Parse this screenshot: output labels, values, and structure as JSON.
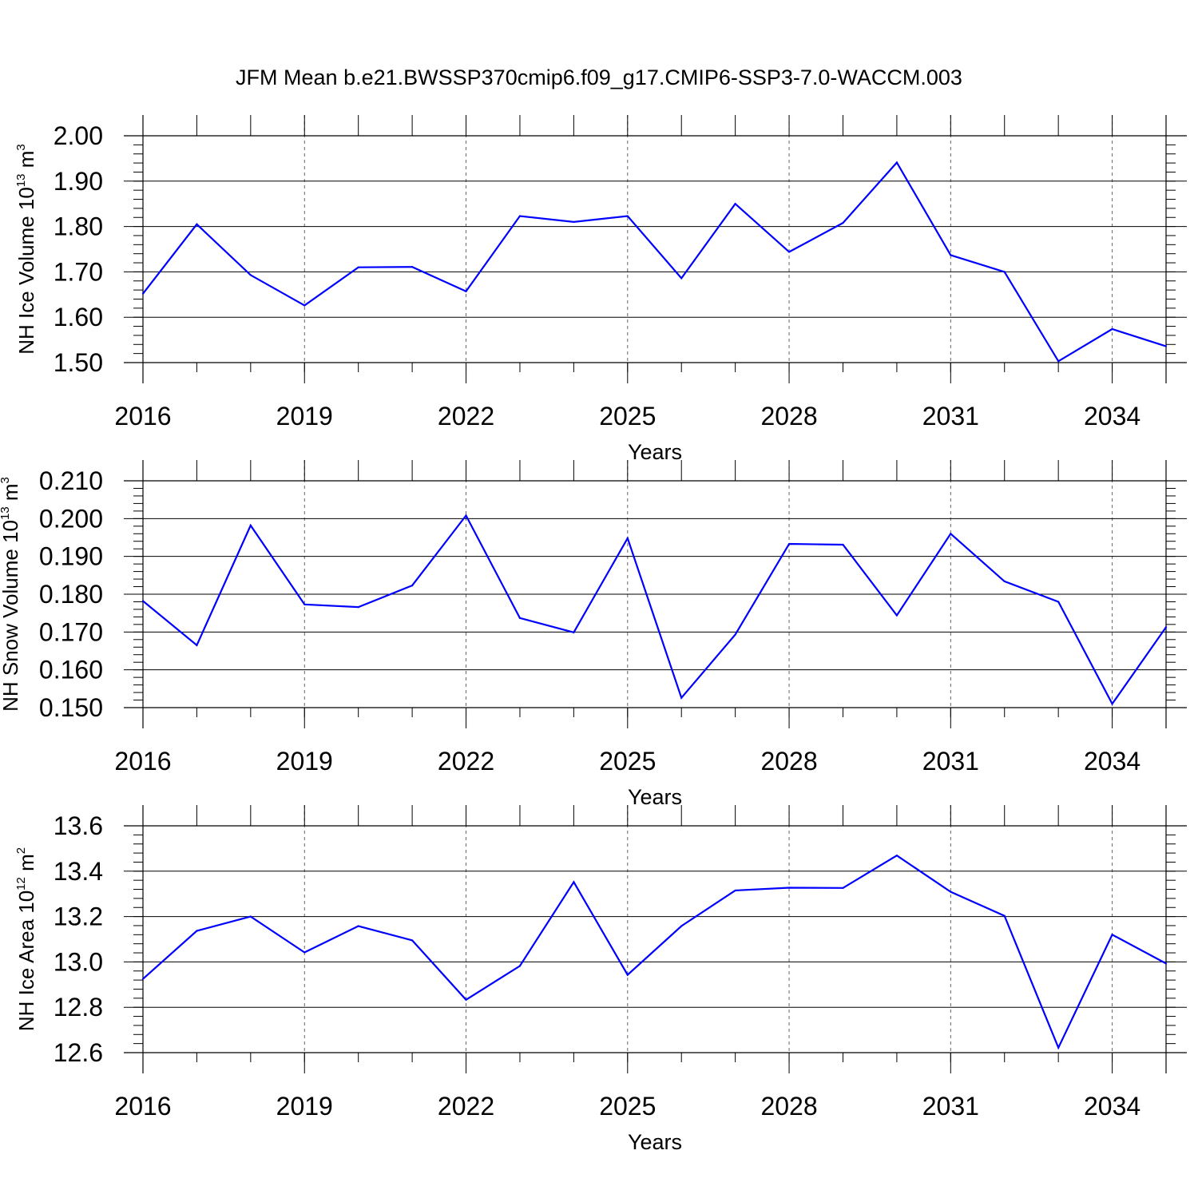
{
  "title": "JFM Mean b.e21.BWSSP370cmip6.f09_g17.CMIP6-SSP3-7.0-WACCM.003",
  "chart_data": [
    {
      "type": "line",
      "xlabel": "Years",
      "ylabel_main": "NH Ice Volume 10",
      "ylabel_exp": "13",
      "ylabel_unit": " m",
      "ylabel_unit_exp": "3",
      "xlim": [
        2016,
        2035
      ],
      "ylim": [
        1.5,
        2.0
      ],
      "xticks": [
        2016,
        2019,
        2022,
        2025,
        2028,
        2031,
        2034
      ],
      "xtick_labels": [
        "2016",
        "2019",
        "2022",
        "2025",
        "2028",
        "2031",
        "2034"
      ],
      "yticks": [
        1.5,
        1.6,
        1.7,
        1.8,
        1.9,
        2.0
      ],
      "ytick_labels": [
        "1.50",
        "1.60",
        "1.70",
        "1.80",
        "1.90",
        "2.00"
      ],
      "y_minor_step": 0.02,
      "grid": "vertical-dashed",
      "color": "#0000ff",
      "x": [
        2016,
        2017,
        2018,
        2019,
        2020,
        2021,
        2022,
        2023,
        2024,
        2025,
        2026,
        2027,
        2028,
        2029,
        2030,
        2031,
        2032,
        2033,
        2034,
        2035
      ],
      "values": [
        1.652,
        1.805,
        1.693,
        1.626,
        1.71,
        1.711,
        1.657,
        1.823,
        1.81,
        1.823,
        1.686,
        1.85,
        1.744,
        1.808,
        1.941,
        1.737,
        1.7,
        1.503,
        1.574,
        1.536
      ]
    },
    {
      "type": "line",
      "xlabel": "Years",
      "ylabel_main": "NH Snow Volume 10",
      "ylabel_exp": "13",
      "ylabel_unit": " m",
      "ylabel_unit_exp": "3",
      "xlim": [
        2016,
        2035
      ],
      "ylim": [
        0.15,
        0.21
      ],
      "xticks": [
        2016,
        2019,
        2022,
        2025,
        2028,
        2031,
        2034
      ],
      "xtick_labels": [
        "2016",
        "2019",
        "2022",
        "2025",
        "2028",
        "2031",
        "2034"
      ],
      "yticks": [
        0.15,
        0.16,
        0.17,
        0.18,
        0.19,
        0.2,
        0.21
      ],
      "ytick_labels": [
        "0.150",
        "0.160",
        "0.170",
        "0.180",
        "0.190",
        "0.200",
        "0.210"
      ],
      "y_minor_step": 0.002,
      "grid": "vertical-dashed",
      "color": "#0000ff",
      "x": [
        2016,
        2017,
        2018,
        2019,
        2020,
        2021,
        2022,
        2023,
        2024,
        2025,
        2026,
        2027,
        2028,
        2029,
        2030,
        2031,
        2032,
        2033,
        2034,
        2035
      ],
      "values": [
        0.1782,
        0.1665,
        0.1982,
        0.1773,
        0.1766,
        0.1823,
        0.2008,
        0.1737,
        0.1699,
        0.1948,
        0.1526,
        0.1693,
        0.1933,
        0.1931,
        0.1744,
        0.196,
        0.1834,
        0.178,
        0.151,
        0.1713
      ]
    },
    {
      "type": "line",
      "xlabel": "Years",
      "ylabel_main": "NH Ice Area 10",
      "ylabel_exp": "12",
      "ylabel_unit": " m",
      "ylabel_unit_exp": "2",
      "xlim": [
        2016,
        2035
      ],
      "ylim": [
        12.6,
        13.6
      ],
      "xticks": [
        2016,
        2019,
        2022,
        2025,
        2028,
        2031,
        2034
      ],
      "xtick_labels": [
        "2016",
        "2019",
        "2022",
        "2025",
        "2028",
        "2031",
        "2034"
      ],
      "yticks": [
        12.6,
        12.8,
        13.0,
        13.2,
        13.4,
        13.6
      ],
      "ytick_labels": [
        "12.6",
        "12.8",
        "13.0",
        "13.2",
        "13.4",
        "13.6"
      ],
      "y_minor_step": 0.04,
      "grid": "vertical-dashed",
      "color": "#0000ff",
      "x": [
        2016,
        2017,
        2018,
        2019,
        2020,
        2021,
        2022,
        2023,
        2024,
        2025,
        2026,
        2027,
        2028,
        2029,
        2030,
        2031,
        2032,
        2033,
        2034,
        2035
      ],
      "values": [
        12.925,
        13.137,
        13.2,
        13.042,
        13.158,
        13.095,
        12.833,
        12.982,
        13.352,
        12.943,
        13.158,
        13.315,
        13.327,
        13.326,
        13.469,
        13.309,
        13.203,
        12.622,
        13.12,
        12.993
      ]
    }
  ]
}
